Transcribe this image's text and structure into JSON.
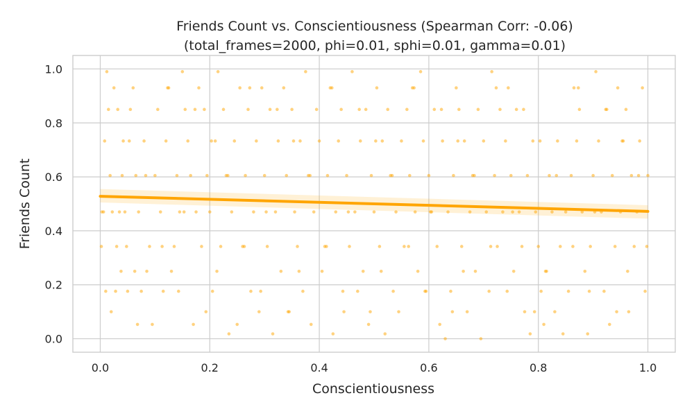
{
  "chart_data": {
    "type": "scatter",
    "title": "Friends Count vs. Conscientiousness (Spearman Corr: -0.06)",
    "subtitle": "(total_frames=2000, phi=0.01, sphi=0.01, gamma=0.01)",
    "xlabel": "Conscientiousness",
    "ylabel": "Friends Count",
    "xlim": [
      -0.05,
      1.05
    ],
    "ylim": [
      -0.05,
      1.05
    ],
    "xticks": [
      "0.0",
      "0.2",
      "0.4",
      "0.6",
      "0.8",
      "1.0"
    ],
    "yticks": [
      "0.0",
      "0.2",
      "0.4",
      "0.6",
      "0.8",
      "1.0"
    ],
    "grid": true,
    "point_color": "#ffa500",
    "line_color": "#ffa500",
    "regression": {
      "x": [
        0.0,
        1.0
      ],
      "y": [
        0.528,
        0.472
      ],
      "ci_lower": [
        0.505,
        0.445
      ],
      "ci_upper": [
        0.555,
        0.495
      ]
    },
    "scatter_levels": [
      0.0,
      0.018,
      0.053,
      0.1,
      0.176,
      0.25,
      0.342,
      0.47,
      0.605,
      0.733,
      0.85,
      0.93,
      0.99
    ],
    "points": [
      [
        0.002,
        0.342
      ],
      [
        0.006,
        0.47
      ],
      [
        0.008,
        0.733
      ],
      [
        0.01,
        0.176
      ],
      [
        0.012,
        0.99
      ],
      [
        0.015,
        0.85
      ],
      [
        0.018,
        0.605
      ],
      [
        0.02,
        0.1
      ],
      [
        0.022,
        0.47
      ],
      [
        0.025,
        0.93
      ],
      [
        0.028,
        0.176
      ],
      [
        0.03,
        0.342
      ],
      [
        0.032,
        0.85
      ],
      [
        0.035,
        0.47
      ],
      [
        0.038,
        0.25
      ],
      [
        0.04,
        0.605
      ],
      [
        0.042,
        0.733
      ],
      [
        0.045,
        0.47
      ],
      [
        0.048,
        0.342
      ],
      [
        0.05,
        0.176
      ],
      [
        0.055,
        0.85
      ],
      [
        0.06,
        0.93
      ],
      [
        0.065,
        0.605
      ],
      [
        0.068,
        0.053
      ],
      [
        0.07,
        0.47
      ],
      [
        0.075,
        0.176
      ],
      [
        0.08,
        0.733
      ],
      [
        0.085,
        0.25
      ],
      [
        0.09,
        0.342
      ],
      [
        0.095,
        0.053
      ],
      [
        0.1,
        0.605
      ],
      [
        0.105,
        0.85
      ],
      [
        0.11,
        0.47
      ],
      [
        0.115,
        0.176
      ],
      [
        0.12,
        0.733
      ],
      [
        0.125,
        0.93
      ],
      [
        0.13,
        0.25
      ],
      [
        0.135,
        0.342
      ],
      [
        0.14,
        0.605
      ],
      [
        0.145,
        0.47
      ],
      [
        0.15,
        0.99
      ],
      [
        0.155,
        0.85
      ],
      [
        0.16,
        0.733
      ],
      [
        0.165,
        0.605
      ],
      [
        0.17,
        0.053
      ],
      [
        0.175,
        0.47
      ],
      [
        0.18,
        0.93
      ],
      [
        0.185,
        0.342
      ],
      [
        0.19,
        0.85
      ],
      [
        0.195,
        0.605
      ],
      [
        0.2,
        0.47
      ],
      [
        0.205,
        0.176
      ],
      [
        0.21,
        0.733
      ],
      [
        0.215,
        0.99
      ],
      [
        0.22,
        0.342
      ],
      [
        0.225,
        0.85
      ],
      [
        0.23,
        0.605
      ],
      [
        0.235,
        0.018
      ],
      [
        0.24,
        0.47
      ],
      [
        0.245,
        0.733
      ],
      [
        0.25,
        0.053
      ],
      [
        0.255,
        0.93
      ],
      [
        0.26,
        0.342
      ],
      [
        0.265,
        0.605
      ],
      [
        0.27,
        0.85
      ],
      [
        0.275,
        0.176
      ],
      [
        0.28,
        0.47
      ],
      [
        0.285,
        0.733
      ],
      [
        0.29,
        0.1
      ],
      [
        0.295,
        0.93
      ],
      [
        0.3,
        0.605
      ],
      [
        0.305,
        0.342
      ],
      [
        0.31,
        0.85
      ],
      [
        0.315,
        0.018
      ],
      [
        0.32,
        0.47
      ],
      [
        0.325,
        0.733
      ],
      [
        0.33,
        0.25
      ],
      [
        0.335,
        0.93
      ],
      [
        0.34,
        0.605
      ],
      [
        0.345,
        0.1
      ],
      [
        0.35,
        0.85
      ],
      [
        0.355,
        0.47
      ],
      [
        0.36,
        0.342
      ],
      [
        0.365,
        0.733
      ],
      [
        0.37,
        0.176
      ],
      [
        0.375,
        0.99
      ],
      [
        0.38,
        0.605
      ],
      [
        0.385,
        0.053
      ],
      [
        0.39,
        0.47
      ],
      [
        0.395,
        0.85
      ],
      [
        0.4,
        0.733
      ],
      [
        0.405,
        0.25
      ],
      [
        0.41,
        0.342
      ],
      [
        0.415,
        0.605
      ],
      [
        0.42,
        0.93
      ],
      [
        0.425,
        0.018
      ],
      [
        0.43,
        0.47
      ],
      [
        0.435,
        0.733
      ],
      [
        0.44,
        0.85
      ],
      [
        0.445,
        0.1
      ],
      [
        0.45,
        0.605
      ],
      [
        0.455,
        0.342
      ],
      [
        0.46,
        0.99
      ],
      [
        0.465,
        0.47
      ],
      [
        0.47,
        0.176
      ],
      [
        0.475,
        0.733
      ],
      [
        0.48,
        0.25
      ],
      [
        0.485,
        0.85
      ],
      [
        0.49,
        0.053
      ],
      [
        0.495,
        0.605
      ],
      [
        0.5,
        0.47
      ],
      [
        0.505,
        0.93
      ],
      [
        0.51,
        0.342
      ],
      [
        0.515,
        0.733
      ],
      [
        0.52,
        0.018
      ],
      [
        0.525,
        0.85
      ],
      [
        0.53,
        0.605
      ],
      [
        0.535,
        0.176
      ],
      [
        0.54,
        0.47
      ],
      [
        0.545,
        0.1
      ],
      [
        0.55,
        0.733
      ],
      [
        0.555,
        0.342
      ],
      [
        0.56,
        0.85
      ],
      [
        0.565,
        0.605
      ],
      [
        0.57,
        0.93
      ],
      [
        0.575,
        0.47
      ],
      [
        0.58,
        0.25
      ],
      [
        0.585,
        0.99
      ],
      [
        0.59,
        0.733
      ],
      [
        0.595,
        0.176
      ],
      [
        0.6,
        0.605
      ],
      [
        0.605,
        0.47
      ],
      [
        0.61,
        0.85
      ],
      [
        0.615,
        0.342
      ],
      [
        0.62,
        0.053
      ],
      [
        0.625,
        0.733
      ],
      [
        0.63,
        0.0
      ],
      [
        0.635,
        0.47
      ],
      [
        0.64,
        0.176
      ],
      [
        0.645,
        0.605
      ],
      [
        0.65,
        0.93
      ],
      [
        0.655,
        0.85
      ],
      [
        0.66,
        0.342
      ],
      [
        0.665,
        0.733
      ],
      [
        0.67,
        0.1
      ],
      [
        0.675,
        0.47
      ],
      [
        0.68,
        0.605
      ],
      [
        0.685,
        0.25
      ],
      [
        0.69,
        0.85
      ],
      [
        0.695,
        0.0
      ],
      [
        0.7,
        0.733
      ],
      [
        0.705,
        0.47
      ],
      [
        0.71,
        0.176
      ],
      [
        0.715,
        0.99
      ],
      [
        0.72,
        0.605
      ],
      [
        0.725,
        0.342
      ],
      [
        0.73,
        0.85
      ],
      [
        0.735,
        0.47
      ],
      [
        0.74,
        0.733
      ],
      [
        0.745,
        0.93
      ],
      [
        0.75,
        0.605
      ],
      [
        0.755,
        0.25
      ],
      [
        0.76,
        0.85
      ],
      [
        0.765,
        0.47
      ],
      [
        0.77,
        0.342
      ],
      [
        0.775,
        0.1
      ],
      [
        0.78,
        0.605
      ],
      [
        0.785,
        0.018
      ],
      [
        0.79,
        0.733
      ],
      [
        0.795,
        0.47
      ],
      [
        0.8,
        0.342
      ],
      [
        0.805,
        0.176
      ],
      [
        0.81,
        0.053
      ],
      [
        0.815,
        0.25
      ],
      [
        0.82,
        0.605
      ],
      [
        0.825,
        0.47
      ],
      [
        0.83,
        0.1
      ],
      [
        0.835,
        0.733
      ],
      [
        0.84,
        0.342
      ],
      [
        0.845,
        0.018
      ],
      [
        0.85,
        0.47
      ],
      [
        0.855,
        0.176
      ],
      [
        0.86,
        0.605
      ],
      [
        0.865,
        0.93
      ],
      [
        0.87,
        0.733
      ],
      [
        0.875,
        0.85
      ],
      [
        0.88,
        0.47
      ],
      [
        0.885,
        0.25
      ],
      [
        0.89,
        0.018
      ],
      [
        0.895,
        0.342
      ],
      [
        0.9,
        0.605
      ],
      [
        0.905,
        0.99
      ],
      [
        0.91,
        0.733
      ],
      [
        0.915,
        0.47
      ],
      [
        0.92,
        0.176
      ],
      [
        0.925,
        0.85
      ],
      [
        0.93,
        0.053
      ],
      [
        0.935,
        0.605
      ],
      [
        0.94,
        0.342
      ],
      [
        0.945,
        0.93
      ],
      [
        0.95,
        0.47
      ],
      [
        0.955,
        0.733
      ],
      [
        0.96,
        0.85
      ],
      [
        0.965,
        0.1
      ],
      [
        0.97,
        0.605
      ],
      [
        0.975,
        0.342
      ],
      [
        0.98,
        0.47
      ],
      [
        0.985,
        0.733
      ],
      [
        0.99,
        0.93
      ],
      [
        0.995,
        0.176
      ],
      [
        1.0,
        0.605
      ],
      [
        0.998,
        0.342
      ],
      [
        0.003,
        0.47
      ],
      [
        0.153,
        0.47
      ],
      [
        0.303,
        0.47
      ],
      [
        0.453,
        0.47
      ],
      [
        0.603,
        0.47
      ],
      [
        0.753,
        0.47
      ],
      [
        0.903,
        0.47
      ],
      [
        0.083,
        0.605
      ],
      [
        0.233,
        0.605
      ],
      [
        0.383,
        0.605
      ],
      [
        0.533,
        0.605
      ],
      [
        0.683,
        0.605
      ],
      [
        0.833,
        0.605
      ],
      [
        0.983,
        0.605
      ],
      [
        0.113,
        0.342
      ],
      [
        0.263,
        0.342
      ],
      [
        0.413,
        0.342
      ],
      [
        0.563,
        0.342
      ],
      [
        0.713,
        0.342
      ],
      [
        0.863,
        0.342
      ],
      [
        0.053,
        0.733
      ],
      [
        0.203,
        0.733
      ],
      [
        0.353,
        0.733
      ],
      [
        0.503,
        0.733
      ],
      [
        0.653,
        0.733
      ],
      [
        0.803,
        0.733
      ],
      [
        0.953,
        0.733
      ],
      [
        0.173,
        0.85
      ],
      [
        0.323,
        0.85
      ],
      [
        0.473,
        0.85
      ],
      [
        0.623,
        0.85
      ],
      [
        0.773,
        0.85
      ],
      [
        0.923,
        0.85
      ],
      [
        0.143,
        0.176
      ],
      [
        0.293,
        0.176
      ],
      [
        0.443,
        0.176
      ],
      [
        0.593,
        0.176
      ],
      [
        0.743,
        0.176
      ],
      [
        0.893,
        0.176
      ],
      [
        0.063,
        0.25
      ],
      [
        0.213,
        0.25
      ],
      [
        0.363,
        0.25
      ],
      [
        0.513,
        0.25
      ],
      [
        0.663,
        0.25
      ],
      [
        0.813,
        0.25
      ],
      [
        0.963,
        0.25
      ],
      [
        0.123,
        0.93
      ],
      [
        0.273,
        0.93
      ],
      [
        0.423,
        0.93
      ],
      [
        0.573,
        0.93
      ],
      [
        0.723,
        0.93
      ],
      [
        0.873,
        0.93
      ],
      [
        0.193,
        0.1
      ],
      [
        0.343,
        0.1
      ],
      [
        0.493,
        0.1
      ],
      [
        0.643,
        0.1
      ],
      [
        0.793,
        0.1
      ],
      [
        0.943,
        0.1
      ]
    ]
  }
}
